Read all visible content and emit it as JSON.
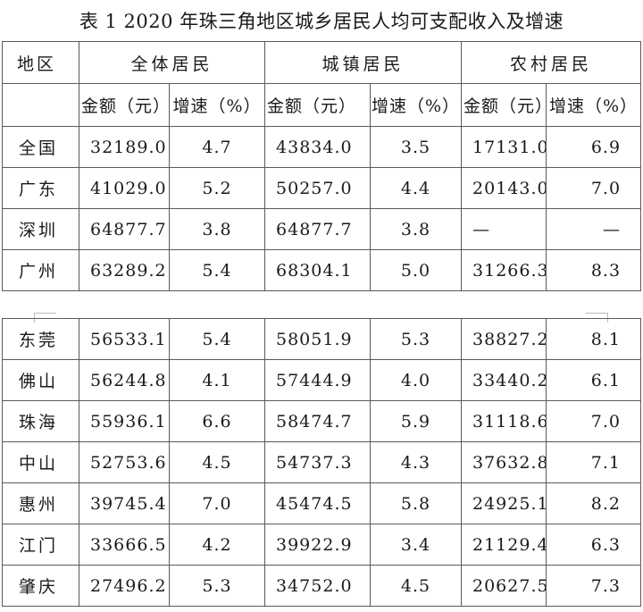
{
  "title": "表 1 2020 年珠三角地区城乡居民人均可支配收入及增速",
  "header": {
    "region": "地区",
    "groups": [
      "全体居民",
      "城镇居民",
      "农村居民"
    ],
    "amount_label": "金额（元）",
    "rate_label": "增速（%）"
  },
  "rows_top": [
    {
      "region": "全国",
      "all_amt": "32189.0",
      "all_rate": "4.7",
      "urban_amt": "43834.0",
      "urban_rate": "3.5",
      "rural_amt": "17131.0",
      "rural_rate": "6.9"
    },
    {
      "region": "广东",
      "all_amt": "41029.0",
      "all_rate": "5.2",
      "urban_amt": "50257.0",
      "urban_rate": "4.4",
      "rural_amt": "20143.0",
      "rural_rate": "7.0"
    },
    {
      "region": "深圳",
      "all_amt": "64877.7",
      "all_rate": "3.8",
      "urban_amt": "64877.7",
      "urban_rate": "3.8",
      "rural_amt": "—",
      "rural_rate": "—"
    },
    {
      "region": "广州",
      "all_amt": "63289.2",
      "all_rate": "5.4",
      "urban_amt": "68304.1",
      "urban_rate": "5.0",
      "rural_amt": "31266.3",
      "rural_rate": "8.3"
    }
  ],
  "rows_bottom": [
    {
      "region": "东莞",
      "all_amt": "56533.1",
      "all_rate": "5.4",
      "urban_amt": "58051.9",
      "urban_rate": "5.3",
      "rural_amt": "38827.2",
      "rural_rate": "8.1"
    },
    {
      "region": "佛山",
      "all_amt": "56244.8",
      "all_rate": "4.1",
      "urban_amt": "57444.9",
      "urban_rate": "4.0",
      "rural_amt": "33440.2",
      "rural_rate": "6.1"
    },
    {
      "region": "珠海",
      "all_amt": "55936.1",
      "all_rate": "6.6",
      "urban_amt": "58474.7",
      "urban_rate": "5.9",
      "rural_amt": "31118.6",
      "rural_rate": "7.0"
    },
    {
      "region": "中山",
      "all_amt": "52753.6",
      "all_rate": "4.5",
      "urban_amt": "54737.3",
      "urban_rate": "4.3",
      "rural_amt": "37632.8",
      "rural_rate": "7.1"
    },
    {
      "region": "惠州",
      "all_amt": "39745.4",
      "all_rate": "7.0",
      "urban_amt": "45474.5",
      "urban_rate": "5.8",
      "rural_amt": "24925.1",
      "rural_rate": "8.2"
    },
    {
      "region": "江门",
      "all_amt": "33666.5",
      "all_rate": "4.2",
      "urban_amt": "39922.9",
      "urban_rate": "3.4",
      "rural_amt": "21129.4",
      "rural_rate": "6.3"
    },
    {
      "region": "肇庆",
      "all_amt": "27496.2",
      "all_rate": "5.3",
      "urban_amt": "34752.0",
      "urban_rate": "4.5",
      "rural_amt": "20627.5",
      "rural_rate": "7.3"
    }
  ]
}
